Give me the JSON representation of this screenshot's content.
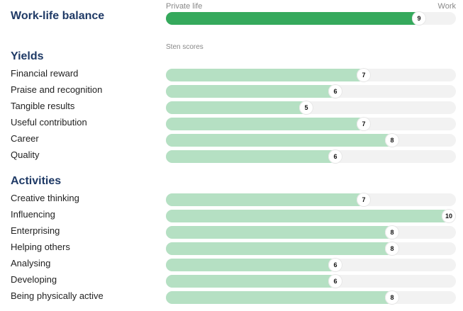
{
  "work_life": {
    "title": "Work-life balance",
    "left_label": "Private life",
    "right_label": "Work",
    "score": "9",
    "fill_fraction": 0.88,
    "color": "#35a95c"
  },
  "sten_label": "Sten scores",
  "bar_color": "#b5e0c3",
  "track_color": "#f2f2f2",
  "yields": {
    "title": "Yields",
    "items": [
      {
        "label": "Financial reward",
        "score": "7"
      },
      {
        "label": "Praise and recognition",
        "score": "6"
      },
      {
        "label": "Tangible results",
        "score": "5"
      },
      {
        "label": "Useful contribution",
        "score": "7"
      },
      {
        "label": "Career",
        "score": "8"
      },
      {
        "label": "Quality",
        "score": "6"
      }
    ]
  },
  "activities": {
    "title": "Activities",
    "items": [
      {
        "label": "Creative thinking",
        "score": "7"
      },
      {
        "label": "Influencing",
        "score": "10"
      },
      {
        "label": "Enterprising",
        "score": "8"
      },
      {
        "label": "Helping others",
        "score": "8"
      },
      {
        "label": "Analysing",
        "score": "6"
      },
      {
        "label": "Developing",
        "score": "6"
      },
      {
        "label": "Being physically active",
        "score": "8"
      }
    ]
  }
}
